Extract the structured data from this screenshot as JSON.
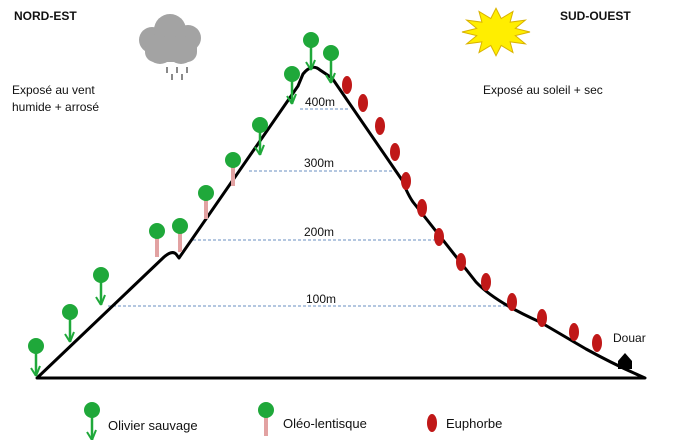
{
  "corners": {
    "left": "NORD-EST",
    "right": "SUD-OUEST"
  },
  "descriptions": {
    "left": "Exposé au vent\nhumide + arrosé",
    "right": "Exposé au soleil + sec"
  },
  "altitudes": [
    "400m",
    "300m",
    "200m",
    "100m"
  ],
  "village": "Douar",
  "legend": {
    "olivier": "Olivier sauvage",
    "oleo": "Oléo-lentisque",
    "euphorbe": "Euphorbe"
  },
  "icons": {
    "left_corner": "rain-cloud-icon",
    "right_corner": "sun-icon",
    "village": "house-icon"
  },
  "colors": {
    "olive_green": "#1fa83a",
    "oleo_stem": "#e2a2a2",
    "euphorbe_red": "#c01818",
    "cloud_grey": "#9a9a9a",
    "sun_yellow": "#ffee00",
    "contour_dash": "#6a8fc0"
  }
}
